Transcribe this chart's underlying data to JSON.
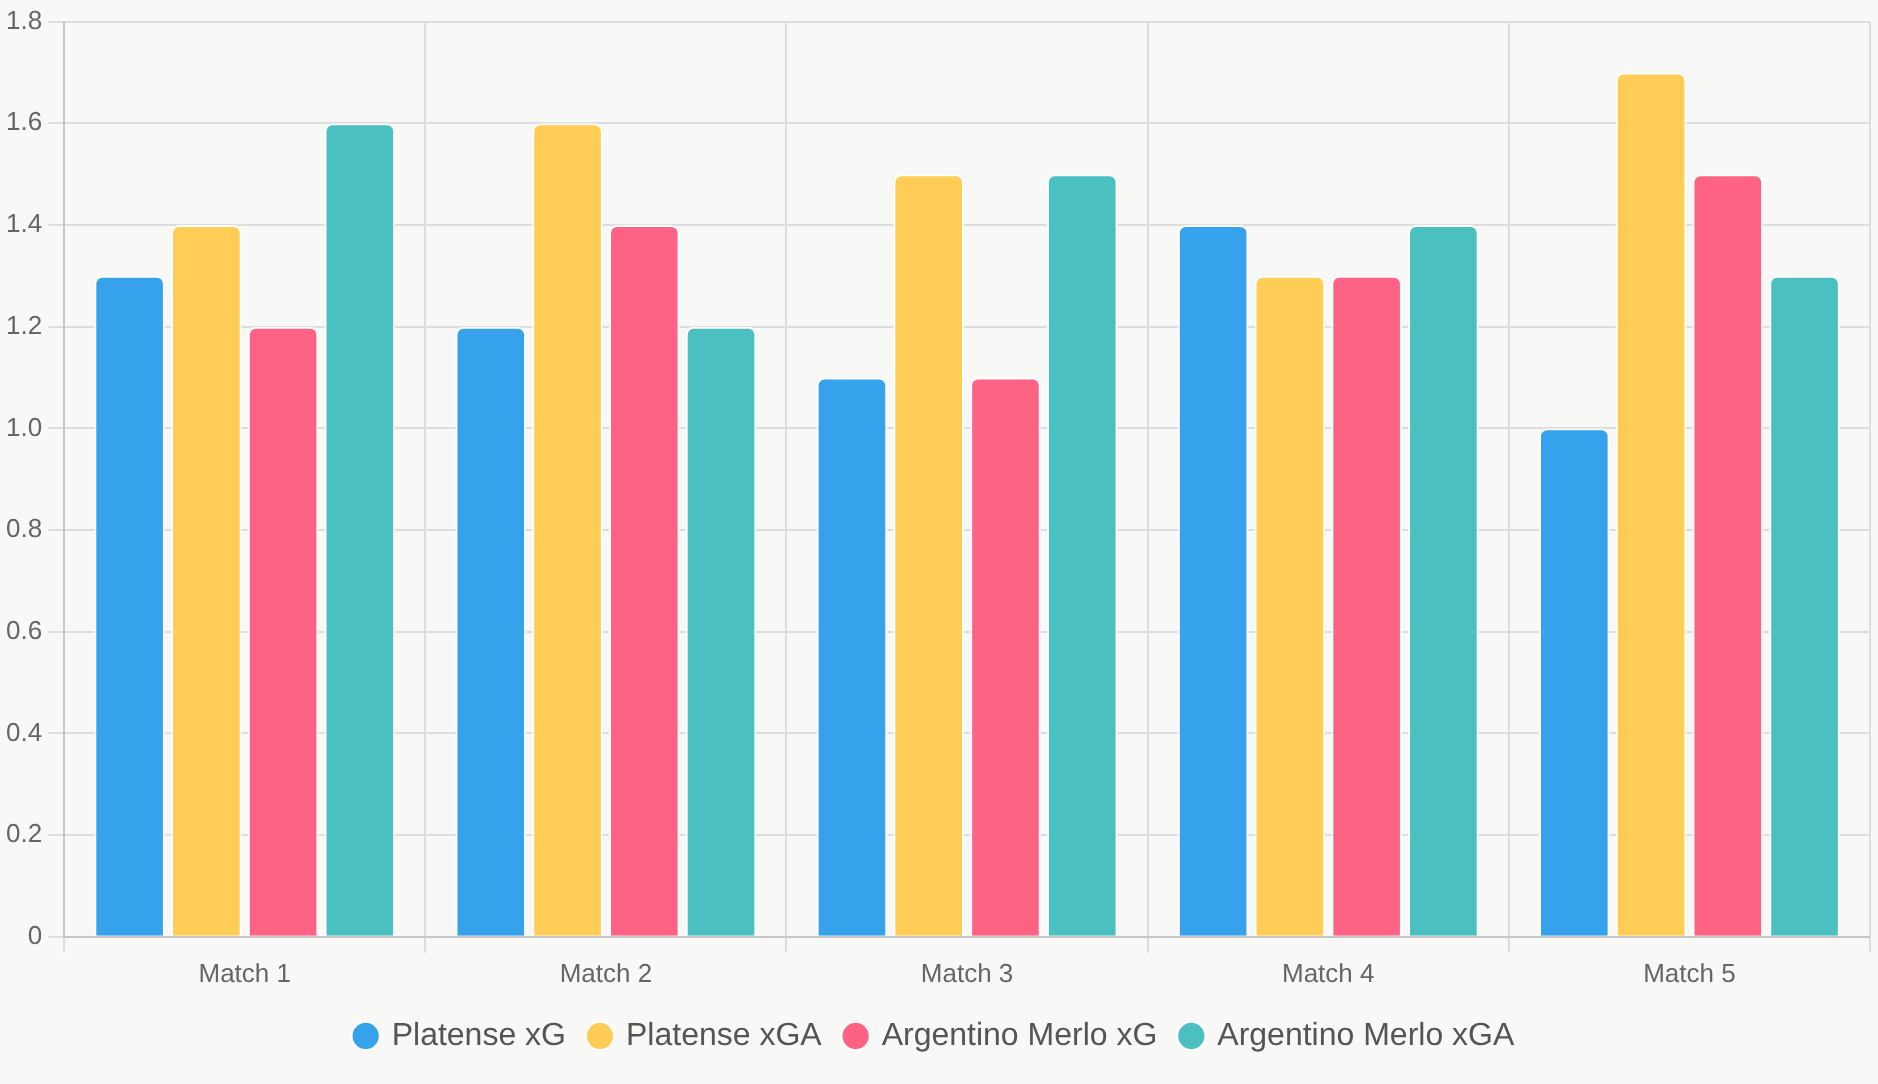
{
  "chart_data": {
    "type": "bar",
    "categories": [
      "Match 1",
      "Match 2",
      "Match 3",
      "Match 4",
      "Match 5"
    ],
    "series": [
      {
        "name": "Platense xG",
        "color": "#36a2eb",
        "values": [
          1.3,
          1.2,
          1.1,
          1.4,
          1.0
        ]
      },
      {
        "name": "Platense xGA",
        "color": "#ffcd56",
        "values": [
          1.4,
          1.6,
          1.5,
          1.3,
          1.7
        ]
      },
      {
        "name": "Argentino Merlo xG",
        "color": "#ff6384",
        "values": [
          1.2,
          1.4,
          1.1,
          1.3,
          1.5
        ]
      },
      {
        "name": "Argentino Merlo xGA",
        "color": "#4bc0c0",
        "values": [
          1.6,
          1.2,
          1.5,
          1.4,
          1.3
        ]
      }
    ],
    "ylim": [
      0,
      1.8
    ],
    "yticks": [
      0,
      0.2,
      0.4,
      0.6,
      0.8,
      {
        "value": 1,
        "label": "1.0"
      },
      1.2,
      1.4,
      1.6,
      1.8
    ],
    "grid": true,
    "legend": "bottom"
  }
}
